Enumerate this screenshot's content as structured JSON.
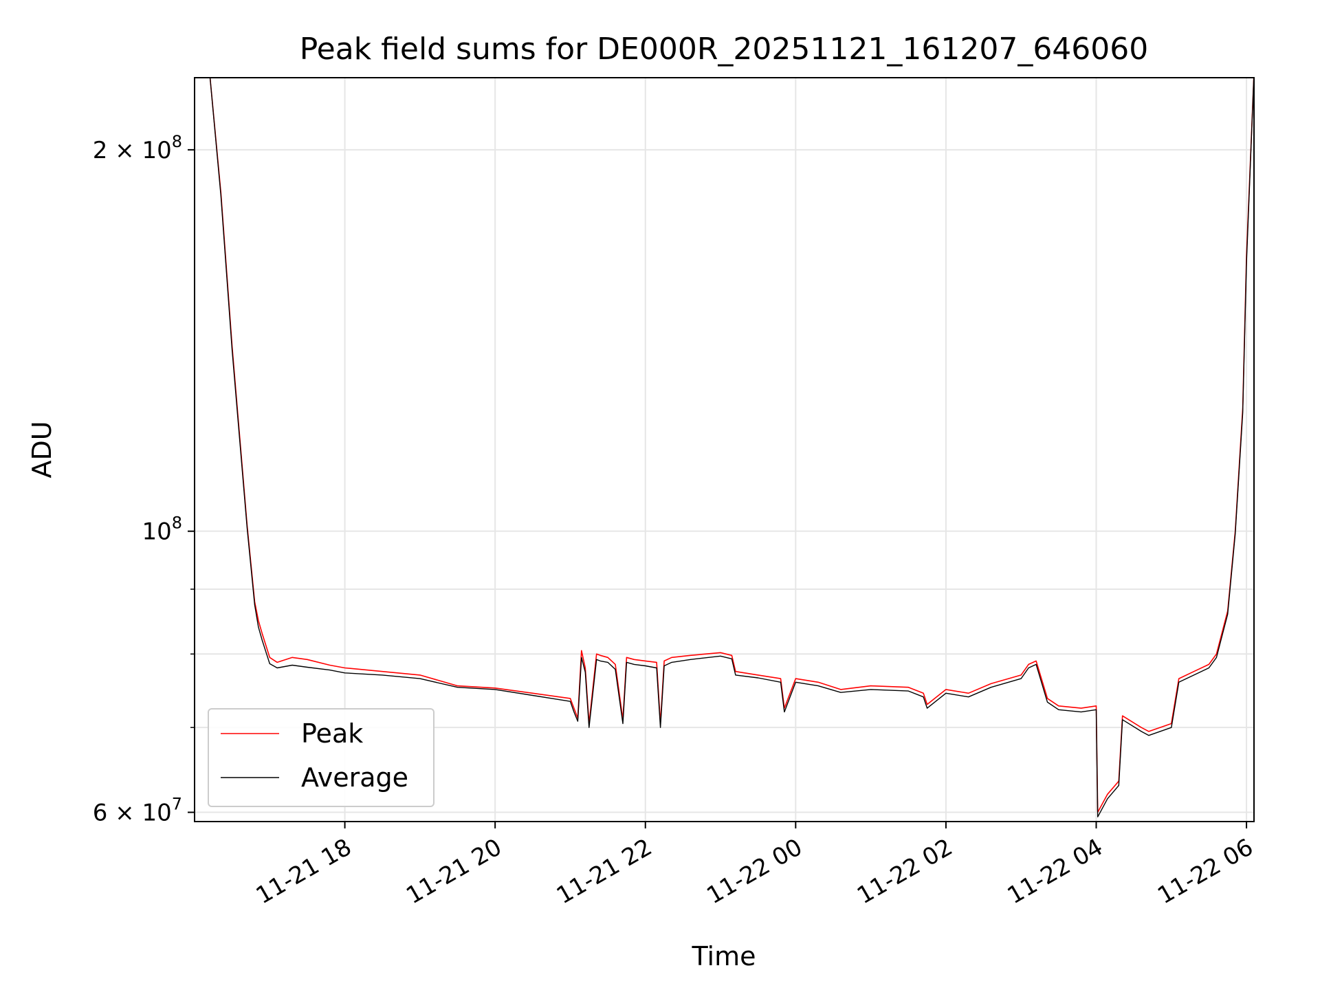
{
  "chart_data": {
    "type": "line",
    "title": "Peak field sums for DE000R_20251121_161207_646060",
    "xlabel": "Time",
    "ylabel": "ADU",
    "yscale": "log",
    "ylim": [
      59000000,
      228000000
    ],
    "xlim_hours": [
      16.0,
      30.1
    ],
    "grid": true,
    "legend_position": "lower-left",
    "x_ticks": [
      {
        "hours": 18,
        "label": "11-21 18"
      },
      {
        "hours": 20,
        "label": "11-21 20"
      },
      {
        "hours": 22,
        "label": "11-21 22"
      },
      {
        "hours": 24,
        "label": "11-22 00"
      },
      {
        "hours": 26,
        "label": "11-22 02"
      },
      {
        "hours": 28,
        "label": "11-22 04"
      },
      {
        "hours": 30,
        "label": "11-22 06"
      }
    ],
    "y_major_ticks": [
      {
        "value": 60000000,
        "base": "6 × 10",
        "exp": "7"
      },
      {
        "value": 100000000,
        "base": "10",
        "exp": "8"
      },
      {
        "value": 200000000,
        "base": "2 × 10",
        "exp": "8"
      }
    ],
    "y_minor_ticks": [
      70000000,
      80000000,
      90000000
    ],
    "series": [
      {
        "name": "Peak",
        "color": "#ff0000",
        "x_hours": [
          16.2,
          16.35,
          16.5,
          16.7,
          16.8,
          16.85,
          16.9,
          17.0,
          17.1,
          17.3,
          17.5,
          17.8,
          18.0,
          18.5,
          19.0,
          19.5,
          20.0,
          20.5,
          21.0,
          21.05,
          21.1,
          21.15,
          21.2,
          21.25,
          21.35,
          21.4,
          21.5,
          21.6,
          21.7,
          21.75,
          21.85,
          22.0,
          22.15,
          22.2,
          22.25,
          22.35,
          22.6,
          23.0,
          23.15,
          23.2,
          23.5,
          23.8,
          23.85,
          24.0,
          24.3,
          24.6,
          25.0,
          25.5,
          25.7,
          25.75,
          26.0,
          26.3,
          26.6,
          27.0,
          27.1,
          27.2,
          27.35,
          27.5,
          27.8,
          28.0,
          28.02,
          28.15,
          28.3,
          28.35,
          28.6,
          28.7,
          29.0,
          29.1,
          29.3,
          29.5,
          29.6,
          29.75,
          29.85,
          29.95,
          30.0,
          30.1
        ],
        "values": [
          230000000,
          185000000,
          140000000,
          101000000,
          88000000,
          85000000,
          83000000,
          79500000,
          78800000,
          79500000,
          79200000,
          78400000,
          78000000,
          77500000,
          77000000,
          75500000,
          75200000,
          74500000,
          73800000,
          72500000,
          71200000,
          80500000,
          78000000,
          70500000,
          80000000,
          79800000,
          79500000,
          78500000,
          71000000,
          79500000,
          79200000,
          79000000,
          78800000,
          70500000,
          79000000,
          79500000,
          79800000,
          80200000,
          79800000,
          77500000,
          77000000,
          76500000,
          72500000,
          76500000,
          76000000,
          75000000,
          75500000,
          75300000,
          74500000,
          73000000,
          75000000,
          74500000,
          75800000,
          77000000,
          78500000,
          79000000,
          73800000,
          72800000,
          72500000,
          72800000,
          60000000,
          62000000,
          63500000,
          71500000,
          70000000,
          69500000,
          70500000,
          76500000,
          77500000,
          78500000,
          80000000,
          86500000,
          100000000,
          125000000,
          165000000,
          230000000
        ]
      },
      {
        "name": "Average",
        "color": "#000000",
        "x_hours": [
          16.2,
          16.35,
          16.5,
          16.7,
          16.8,
          16.85,
          16.9,
          17.0,
          17.1,
          17.3,
          17.5,
          17.8,
          18.0,
          18.5,
          19.0,
          19.5,
          20.0,
          20.5,
          21.0,
          21.05,
          21.1,
          21.15,
          21.2,
          21.25,
          21.35,
          21.4,
          21.5,
          21.6,
          21.7,
          21.75,
          21.85,
          22.0,
          22.15,
          22.2,
          22.25,
          22.35,
          22.6,
          23.0,
          23.15,
          23.2,
          23.5,
          23.8,
          23.85,
          24.0,
          24.3,
          24.6,
          25.0,
          25.5,
          25.7,
          25.75,
          26.0,
          26.3,
          26.6,
          27.0,
          27.1,
          27.2,
          27.35,
          27.5,
          27.8,
          28.0,
          28.02,
          28.15,
          28.3,
          28.35,
          28.6,
          28.7,
          29.0,
          29.1,
          29.3,
          29.5,
          29.6,
          29.75,
          29.85,
          29.95,
          30.0,
          30.1
        ],
        "values": [
          230000000,
          184000000,
          139000000,
          100500000,
          87500000,
          84000000,
          82000000,
          78600000,
          78000000,
          78400000,
          78100000,
          77700000,
          77300000,
          77000000,
          76500000,
          75300000,
          75000000,
          74200000,
          73400000,
          72000000,
          70800000,
          79500000,
          77400000,
          70000000,
          79200000,
          79000000,
          78800000,
          77800000,
          70500000,
          78800000,
          78500000,
          78300000,
          78000000,
          70000000,
          78300000,
          78800000,
          79200000,
          79700000,
          79300000,
          77000000,
          76600000,
          76000000,
          72000000,
          76000000,
          75500000,
          74600000,
          75000000,
          74800000,
          74000000,
          72500000,
          74500000,
          74000000,
          75300000,
          76500000,
          78000000,
          78500000,
          73300000,
          72300000,
          72000000,
          72300000,
          59500000,
          61500000,
          63000000,
          71000000,
          69500000,
          69000000,
          70000000,
          76000000,
          77000000,
          78000000,
          79500000,
          86000000,
          99500000,
          124000000,
          163000000,
          230000000
        ]
      }
    ]
  }
}
